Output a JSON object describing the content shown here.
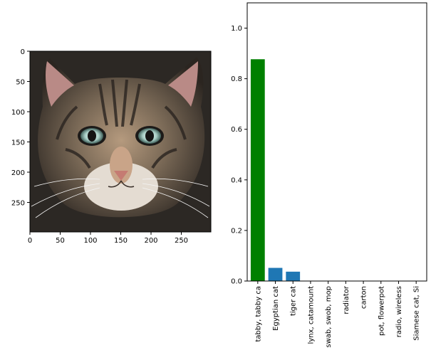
{
  "image_panel": {
    "image_subject": "tabby cat face",
    "xlim": [
      0,
      299
    ],
    "ylim": [
      299,
      0
    ],
    "x_ticks": [
      "0",
      "50",
      "100",
      "150",
      "200",
      "250"
    ],
    "y_ticks": [
      "0",
      "50",
      "100",
      "150",
      "200",
      "250"
    ]
  },
  "chart_data": {
    "type": "bar",
    "categories": [
      "tabby, tabby ca",
      "Egyptian cat",
      "tiger cat",
      "lynx, catamount",
      "swab, swob, mop",
      "radiator",
      "carton",
      "pot, flowerpot",
      "radio, wireless",
      "Siamese cat, Si"
    ],
    "values": [
      0.877,
      0.052,
      0.037,
      0.001,
      0.0005,
      0.0004,
      0.0003,
      0.0003,
      0.0002,
      0.0002
    ],
    "bar_colors": [
      "#008000",
      "#1f77b4",
      "#1f77b4",
      "#1f77b4",
      "#1f77b4",
      "#1f77b4",
      "#1f77b4",
      "#1f77b4",
      "#1f77b4",
      "#1f77b4"
    ],
    "ylim": [
      0,
      1.1
    ],
    "y_ticks": [
      0.0,
      0.2,
      0.4,
      0.6,
      0.8,
      1.0
    ],
    "y_tick_labels": [
      "0.0",
      "0.2",
      "0.4",
      "0.6",
      "0.8",
      "1.0"
    ],
    "xlabel": "",
    "ylabel": "",
    "title": "",
    "grid": false
  }
}
